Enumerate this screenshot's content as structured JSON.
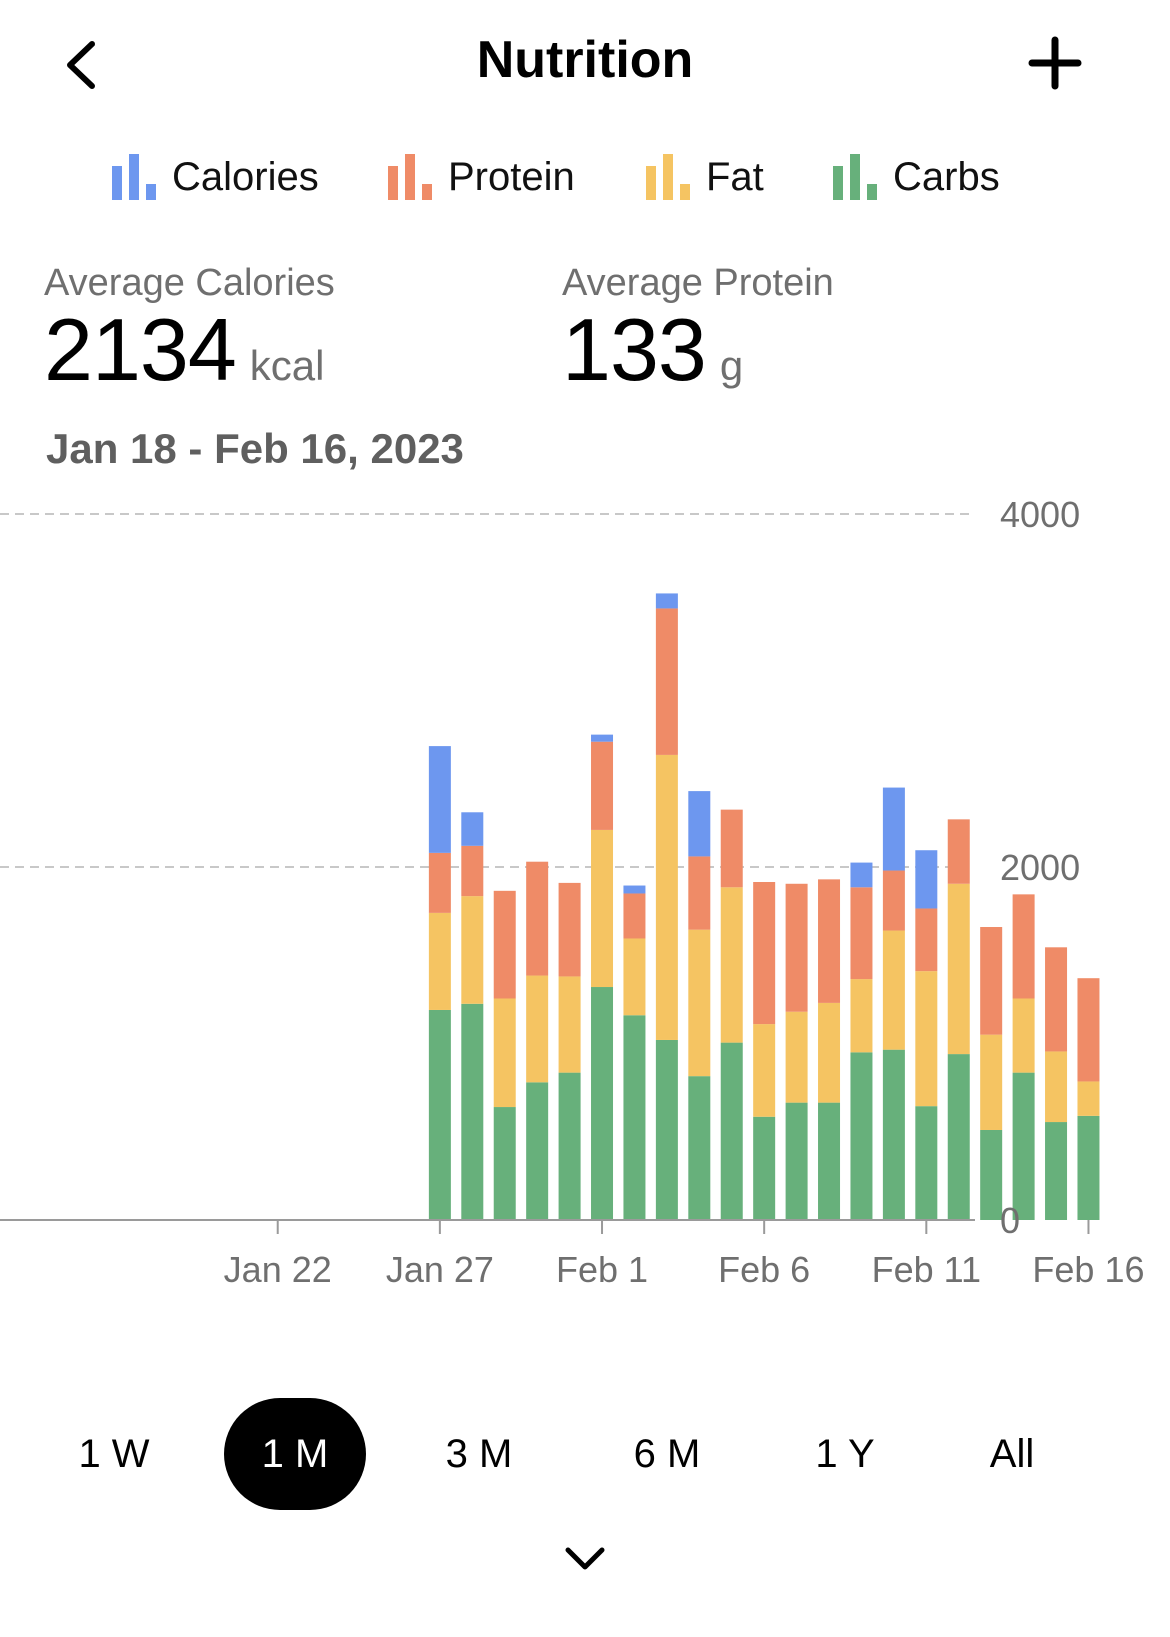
{
  "header": {
    "title": "Nutrition",
    "back_icon": "chevron-left-icon",
    "add_icon": "plus-icon"
  },
  "legend": [
    {
      "label": "Calories",
      "color": "#6d97ef",
      "icon": "bar-chart-icon"
    },
    {
      "label": "Protein",
      "color": "#ef8b67",
      "icon": "bar-chart-icon"
    },
    {
      "label": "Fat",
      "color": "#f5c462",
      "icon": "bar-chart-icon"
    },
    {
      "label": "Carbs",
      "color": "#67b07b",
      "icon": "bar-chart-icon"
    }
  ],
  "stats": {
    "calories": {
      "label": "Average Calories",
      "value": "2134",
      "unit": "kcal"
    },
    "protein": {
      "label": "Average Protein",
      "value": "133",
      "unit": "g"
    },
    "date_range": "Jan 18 - Feb 16, 2023"
  },
  "chart_data": {
    "type": "bar",
    "stacked": true,
    "x_tick_labels": [
      "Jan 22",
      "Jan 27",
      "Feb 1",
      "Feb 6",
      "Feb 11",
      "Feb 16"
    ],
    "y_tick_labels": [
      "0",
      "2000",
      "4000"
    ],
    "ylim": [
      0,
      4000
    ],
    "grid": true,
    "categories": [
      "Jan 18",
      "Jan 19",
      "Jan 20",
      "Jan 21",
      "Jan 22",
      "Jan 23",
      "Jan 24",
      "Jan 25",
      "Jan 26",
      "Jan 27",
      "Jan 28",
      "Jan 29",
      "Jan 30",
      "Jan 31",
      "Feb 1",
      "Feb 2",
      "Feb 3",
      "Feb 4",
      "Feb 5",
      "Feb 6",
      "Feb 7",
      "Feb 8",
      "Feb 9",
      "Feb 10",
      "Feb 11",
      "Feb 12",
      "Feb 13",
      "Feb 14",
      "Feb 15",
      "Feb 16"
    ],
    "series": [
      {
        "name": "Carbs",
        "color": "#67b07b",
        "values": [
          0,
          0,
          0,
          0,
          0,
          0,
          0,
          0,
          0,
          1190,
          1225,
          640,
          780,
          835,
          1320,
          1160,
          1020,
          815,
          1005,
          585,
          665,
          665,
          950,
          965,
          645,
          940,
          510,
          835,
          555,
          590
        ]
      },
      {
        "name": "Fat",
        "color": "#f5c462",
        "values": [
          0,
          0,
          0,
          0,
          0,
          0,
          0,
          0,
          0,
          550,
          610,
          615,
          605,
          545,
          890,
          435,
          1615,
          830,
          880,
          525,
          515,
          565,
          415,
          675,
          765,
          965,
          540,
          420,
          400,
          195
        ]
      },
      {
        "name": "Protein",
        "color": "#ef8b67",
        "values": [
          0,
          0,
          0,
          0,
          0,
          0,
          0,
          0,
          0,
          340,
          285,
          610,
          645,
          530,
          500,
          255,
          830,
          415,
          440,
          805,
          725,
          700,
          520,
          340,
          355,
          365,
          610,
          590,
          590,
          585
        ]
      },
      {
        "name": "Calories",
        "color": "#6d97ef",
        "values": [
          0,
          0,
          0,
          0,
          0,
          0,
          0,
          0,
          0,
          605,
          190,
          0,
          0,
          0,
          40,
          45,
          85,
          370,
          0,
          0,
          0,
          0,
          140,
          470,
          330,
          0,
          0,
          0,
          0,
          0
        ]
      }
    ]
  },
  "ranges": [
    {
      "label": "1 W",
      "active": false
    },
    {
      "label": "1 M",
      "active": true
    },
    {
      "label": "3 M",
      "active": false
    },
    {
      "label": "6 M",
      "active": false
    },
    {
      "label": "1 Y",
      "active": false
    },
    {
      "label": "All",
      "active": false
    }
  ],
  "footer": {
    "expand_icon": "chevron-down-icon"
  }
}
